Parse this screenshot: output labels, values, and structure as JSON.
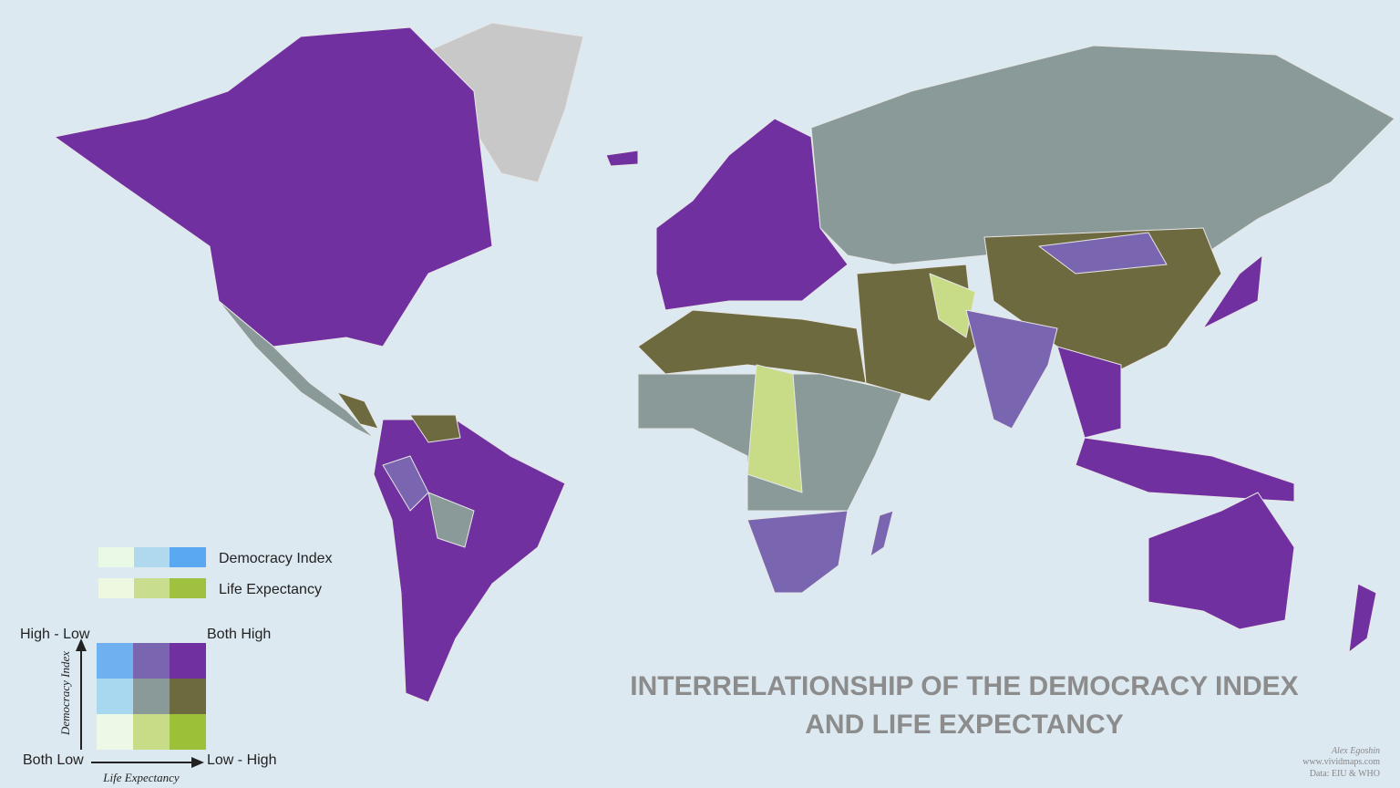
{
  "title": {
    "line1": "INTERRELATIONSHIP OF THE DEMOCRACY INDEX",
    "line2": "AND LIFE EXPECTANCY"
  },
  "legend": {
    "scales": [
      "Democracy Index",
      "Life Expectancy"
    ],
    "corners": {
      "top_left": "High - Low",
      "top_right": "Both High",
      "bottom_left": "Both Low",
      "bottom_right": "Low - High"
    },
    "y_axis": "Democracy Index",
    "x_axis": "Life Expectancy"
  },
  "credits": {
    "author": "Alex Egoshin",
    "site": "www.vividmaps.com",
    "source": "Data: EIU & WHO"
  }
}
